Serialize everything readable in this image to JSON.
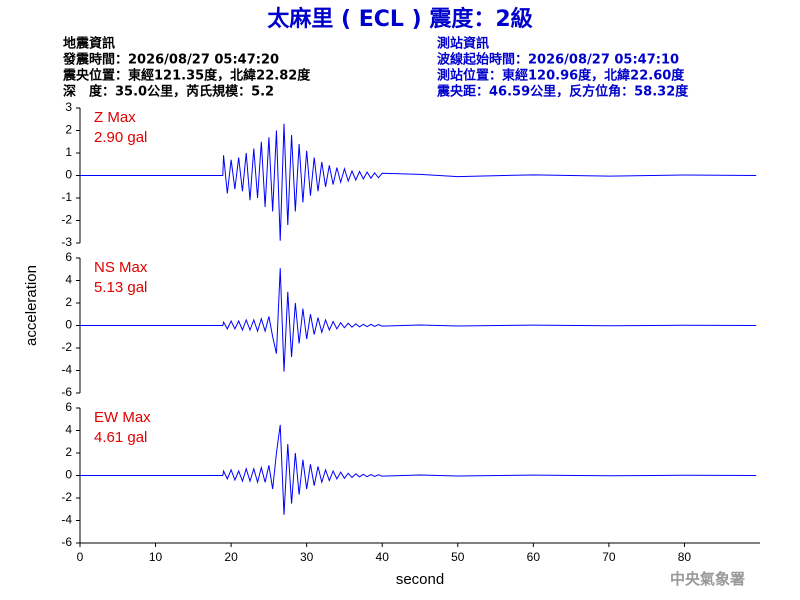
{
  "header": {
    "title": "太麻里 ( ECL ) 震度：2級",
    "left": [
      "地震資訊",
      "發震時間：2026/08/27 05:47:20",
      "震央位置：東經121.35度，北緯22.82度",
      "深　度：35.0公里，芮氏規模：5.2"
    ],
    "right": [
      "測站資訊",
      "波線起始時間：2026/08/27 05:47:10",
      "測站位置：東經120.96度，北緯22.60度",
      "震央距：46.59公里，反方位角：58.32度"
    ]
  },
  "footer": "中央氣象署",
  "chart_data": [
    {
      "type": "line",
      "annotations": [
        "Z Max",
        "2.90 gal"
      ],
      "color": "#0000ff",
      "xlim": [
        0,
        90
      ],
      "ylim": [
        -3,
        3
      ],
      "yticks": [
        -3,
        -2,
        -1,
        0,
        1,
        2,
        3
      ],
      "x": [
        0,
        10,
        18.9,
        19,
        19.5,
        20,
        20.5,
        21,
        21.5,
        22,
        22.5,
        23,
        23.5,
        24,
        24.5,
        25,
        25.5,
        26,
        26.5,
        27,
        27.5,
        28,
        28.5,
        29,
        29.5,
        30,
        30.5,
        31,
        31.5,
        32,
        32.5,
        33,
        33.5,
        34,
        34.5,
        35,
        35.5,
        36,
        36.5,
        37,
        37.5,
        38,
        38.5,
        39,
        39.5,
        40,
        45,
        50,
        60,
        70,
        80,
        89.5
      ],
      "values": [
        0,
        0,
        0,
        0.9,
        -0.8,
        0.7,
        -0.6,
        0.8,
        -0.7,
        1.0,
        -1.1,
        1.2,
        -1.0,
        1.5,
        -1.4,
        1.7,
        -1.6,
        2.0,
        -2.9,
        2.3,
        -2.2,
        1.8,
        -1.6,
        1.4,
        -1.2,
        1.1,
        -0.9,
        0.8,
        -0.7,
        0.6,
        -0.5,
        0.45,
        -0.4,
        0.35,
        -0.3,
        0.3,
        -0.25,
        0.2,
        -0.2,
        0.18,
        -0.15,
        0.15,
        -0.12,
        0.12,
        -0.1,
        0.1,
        0.05,
        -0.05,
        0.03,
        -0.03,
        0.02,
        0
      ]
    },
    {
      "type": "line",
      "annotations": [
        "NS Max",
        "5.13 gal"
      ],
      "color": "#0000ff",
      "ylabel": "acceleration",
      "xlim": [
        0,
        90
      ],
      "ylim": [
        -6,
        6
      ],
      "yticks": [
        -6,
        -4,
        -2,
        0,
        2,
        4,
        6
      ],
      "x": [
        0,
        10,
        18.9,
        19,
        19.5,
        20,
        20.5,
        21,
        21.5,
        22,
        22.5,
        23,
        23.5,
        24,
        24.5,
        25,
        25.5,
        26,
        26.5,
        27,
        27.5,
        28,
        28.5,
        29,
        29.5,
        30,
        30.5,
        31,
        31.5,
        32,
        32.5,
        33,
        33.5,
        34,
        34.5,
        35,
        35.5,
        36,
        36.5,
        37,
        37.5,
        38,
        38.5,
        39,
        39.5,
        40,
        45,
        50,
        60,
        70,
        80,
        89.5
      ],
      "values": [
        0,
        0,
        0,
        0.3,
        -0.3,
        0.4,
        -0.3,
        0.4,
        -0.4,
        0.5,
        -0.4,
        0.5,
        -0.5,
        0.6,
        -0.5,
        0.8,
        -1.0,
        -2.5,
        5.1,
        -4.1,
        3.0,
        -2.8,
        2.0,
        -1.6,
        1.5,
        -1.2,
        1.0,
        -0.8,
        0.7,
        -0.6,
        0.5,
        -0.4,
        0.35,
        -0.3,
        0.25,
        -0.2,
        0.2,
        -0.15,
        0.15,
        -0.12,
        0.1,
        -0.1,
        0.1,
        -0.08,
        0.08,
        -0.06,
        0.05,
        -0.04,
        0.03,
        -0.02,
        0.02,
        0
      ]
    },
    {
      "type": "line",
      "annotations": [
        "EW Max",
        "4.61 gal"
      ],
      "color": "#0000ff",
      "xlabel": "second",
      "xlim": [
        0,
        90
      ],
      "xticks": [
        0,
        10,
        20,
        30,
        40,
        50,
        60,
        70,
        80
      ],
      "ylim": [
        -6,
        6
      ],
      "yticks": [
        -6,
        -4,
        -2,
        0,
        2,
        4,
        6
      ],
      "x": [
        0,
        10,
        18.9,
        19,
        19.5,
        20,
        20.5,
        21,
        21.5,
        22,
        22.5,
        23,
        23.5,
        24,
        24.5,
        25,
        25.5,
        26,
        26.5,
        27,
        27.5,
        28,
        28.5,
        29,
        29.5,
        30,
        30.5,
        31,
        31.5,
        32,
        32.5,
        33,
        33.5,
        34,
        34.5,
        35,
        35.5,
        36,
        36.5,
        37,
        37.5,
        38,
        38.5,
        39,
        39.5,
        40,
        45,
        50,
        60,
        70,
        80,
        89.5
      ],
      "values": [
        0,
        0,
        0,
        0.4,
        -0.3,
        0.5,
        -0.4,
        0.4,
        -0.5,
        0.6,
        -0.5,
        0.6,
        -0.6,
        0.7,
        -0.6,
        0.9,
        -1.2,
        2.0,
        4.5,
        -3.5,
        2.8,
        -2.5,
        2.0,
        -1.7,
        1.4,
        -1.2,
        1.0,
        -0.9,
        0.8,
        -0.6,
        0.5,
        -0.45,
        0.4,
        -0.3,
        0.3,
        -0.25,
        0.2,
        -0.18,
        0.15,
        -0.12,
        0.1,
        -0.1,
        0.08,
        -0.08,
        0.06,
        -0.06,
        0.05,
        -0.04,
        0.03,
        -0.02,
        0.02,
        0
      ]
    }
  ]
}
